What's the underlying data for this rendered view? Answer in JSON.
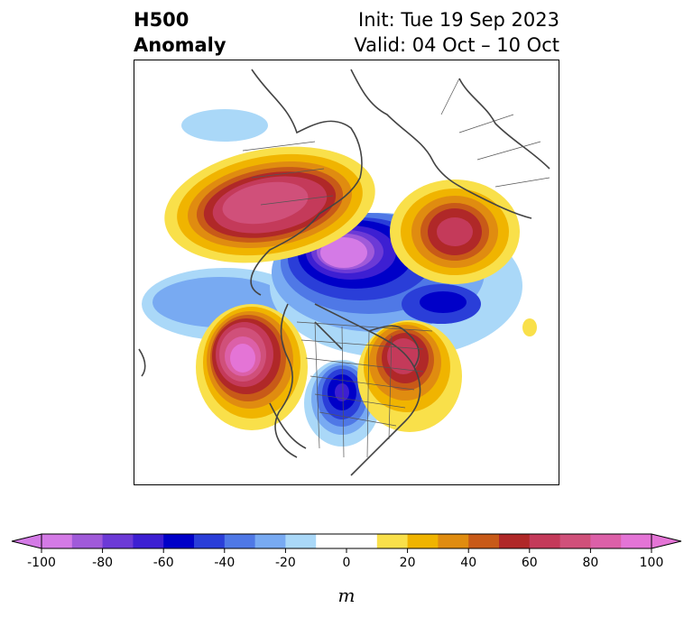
{
  "title": {
    "left_line1": "H500",
    "left_line2": "Anomaly",
    "right_line1": "Init: Tue 19 Sep 2023",
    "right_line2": "Valid: 04 Oct – 10 Oct"
  },
  "colorbar": {
    "unit": "m",
    "ticks": [
      "-100",
      "-80",
      "-60",
      "-40",
      "-20",
      "0",
      "20",
      "40",
      "60",
      "80",
      "100"
    ],
    "tick_values": [
      -100,
      -80,
      -60,
      -40,
      -20,
      0,
      20,
      40,
      60,
      80,
      100
    ],
    "colors": [
      "#d47ae6",
      "#a05ad9",
      "#6c3ad6",
      "#3d1fd2",
      "#0000c8",
      "#2a3ed8",
      "#4f78e6",
      "#78aaf2",
      "#aad8f8",
      "#ffffff",
      "#ffffff",
      "#f9e04a",
      "#f0b400",
      "#e08c10",
      "#c85a18",
      "#b02828",
      "#c43a5a",
      "#d0507a",
      "#dc60a8",
      "#e474d6"
    ],
    "extend_low": "#d47ae6",
    "extend_high": "#e474d6"
  }
}
